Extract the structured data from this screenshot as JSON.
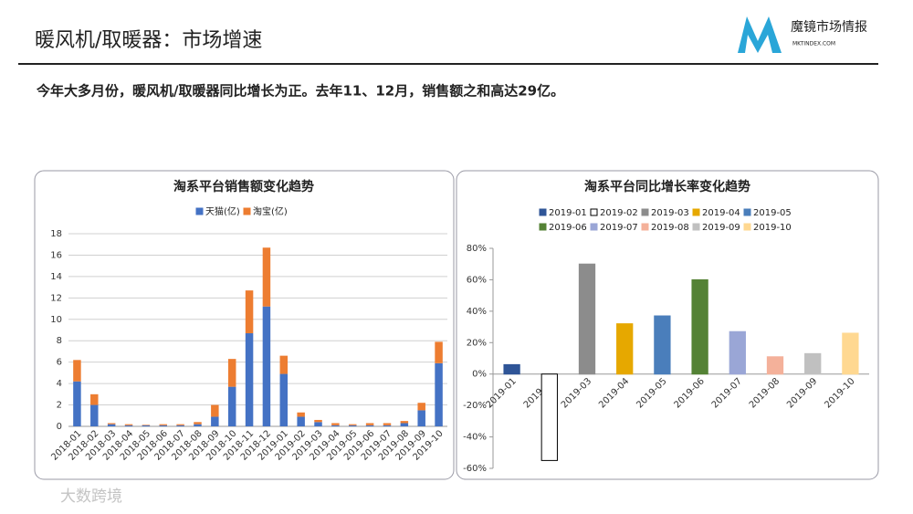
{
  "header": {
    "title": "暖风机/取暖器：市场增速",
    "subtitle": "今年大多月份，暖风机/取暖器同比增长为正。去年11、12月，销售额之和高达29亿。",
    "logo_name": "魔镜市场情报",
    "logo_url": "MKTINDEX.COM",
    "watermark": "大数跨境"
  },
  "chart_data": [
    {
      "type": "bar",
      "stacked": true,
      "title": "淘系平台销售额变化趋势",
      "categories": [
        "2018-01",
        "2018-02",
        "2018-03",
        "2018-04",
        "2018-05",
        "2018-06",
        "2018-07",
        "2018-08",
        "2018-09",
        "2018-10",
        "2018-11",
        "2018-12",
        "2019-01",
        "2019-02",
        "2019-03",
        "2019-04",
        "2019-05",
        "2019-06",
        "2019-07",
        "2019-08",
        "2019-09",
        "2019-10"
      ],
      "series": [
        {
          "name": "天猫(亿)",
          "color": "#4472c4",
          "values": [
            4.2,
            2.0,
            0.2,
            0.1,
            0.1,
            0.1,
            0.1,
            0.2,
            0.9,
            3.7,
            8.7,
            11.2,
            4.9,
            0.9,
            0.4,
            0.1,
            0.1,
            0.1,
            0.1,
            0.3,
            1.5,
            5.9
          ]
        },
        {
          "name": "淘宝(亿)",
          "color": "#ed7d31",
          "values": [
            2.0,
            1.0,
            0.1,
            0.1,
            0.05,
            0.1,
            0.1,
            0.2,
            1.1,
            2.6,
            4.0,
            5.5,
            1.7,
            0.4,
            0.2,
            0.2,
            0.1,
            0.2,
            0.2,
            0.2,
            0.7,
            2.0
          ]
        }
      ],
      "ylim": [
        0,
        18
      ],
      "yticks": [
        0,
        2,
        4,
        6,
        8,
        10,
        12,
        14,
        16,
        18
      ],
      "grid": true
    },
    {
      "type": "bar",
      "title": "淘系平台同比增长率变化趋势",
      "categories": [
        "2019-01",
        "2019-02",
        "2019-03",
        "2019-04",
        "2019-05",
        "2019-06",
        "2019-07",
        "2019-08",
        "2019-09",
        "2019-10"
      ],
      "values": [
        6,
        -55,
        70,
        32,
        37,
        60,
        27,
        11,
        13,
        26
      ],
      "colors": [
        "#2f5597",
        "#ffffff",
        "#8c8c8c",
        "#e6a800",
        "#4a7ebb",
        "#548235",
        "#9aa6d6",
        "#f4b19a",
        "#c0c0c0",
        "#ffd891"
      ],
      "ylim": [
        -60,
        80
      ],
      "yticks": [
        {
          "value": -60,
          "label": "-60%"
        },
        {
          "value": -40,
          "label": "-40%"
        },
        {
          "value": -20,
          "label": "-20%"
        },
        {
          "value": 0,
          "label": "0%"
        },
        {
          "value": 20,
          "label": "20%"
        },
        {
          "value": 40,
          "label": "40%"
        },
        {
          "value": 60,
          "label": "60%"
        },
        {
          "value": 80,
          "label": "80%"
        }
      ],
      "grid": false
    }
  ]
}
